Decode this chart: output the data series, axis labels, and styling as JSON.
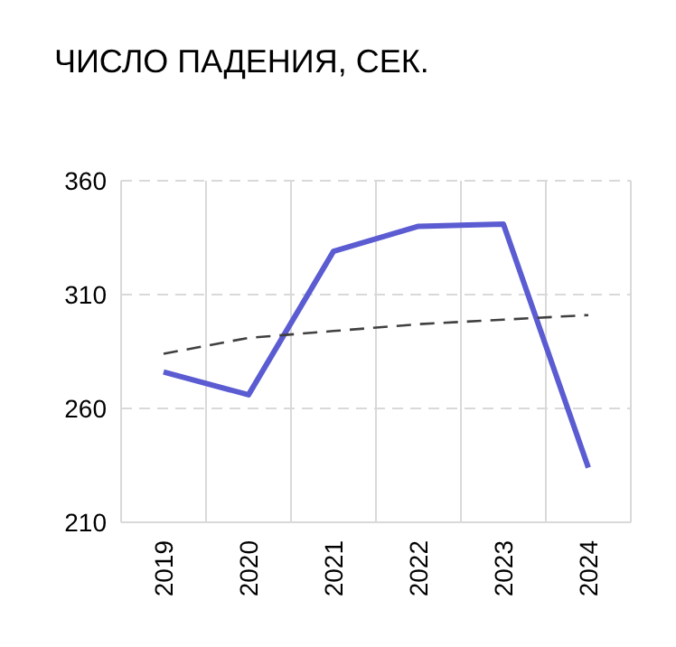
{
  "chart_data": {
    "type": "line",
    "title": "ЧИСЛО ПАДЕНИЯ, СЕК.",
    "categories": [
      "2019",
      "2020",
      "2021",
      "2022",
      "2023",
      "2024"
    ],
    "series": [
      {
        "color": "#5b5bd2",
        "values": [
          276,
          266,
          329,
          340,
          341,
          234
        ]
      },
      {
        "type": "line",
        "line_style": "dashed",
        "color": "#404040",
        "values": [
          284,
          291,
          294,
          297,
          299,
          301
        ]
      }
    ],
    "ylim": [
      210,
      360
    ],
    "yticks": [
      210,
      260,
      310,
      360
    ],
    "grid": true,
    "marker": "none"
  }
}
